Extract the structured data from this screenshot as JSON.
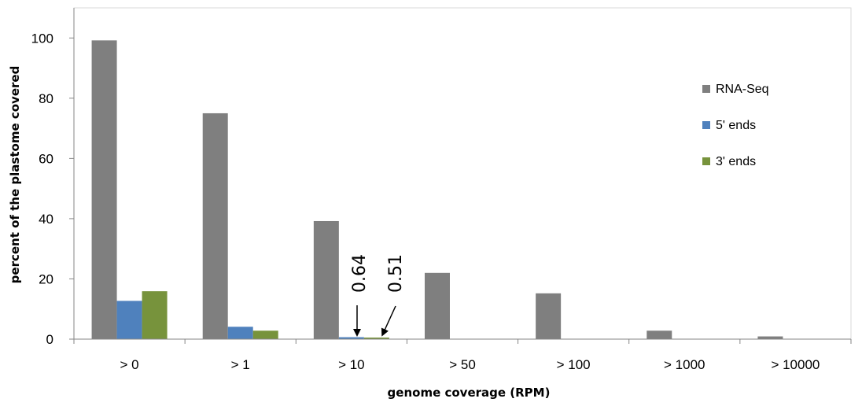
{
  "chart_data": {
    "type": "bar",
    "xlabel": "genome coverage (RPM)",
    "ylabel": "percent of the plastome covered",
    "ylim": [
      0,
      110
    ],
    "yticks": [
      0,
      20,
      40,
      60,
      80,
      100
    ],
    "grid": false,
    "legend_position": "right",
    "categories": [
      "> 0",
      "> 1",
      "> 10",
      "> 50",
      "> 100",
      "> 1000",
      "> 10000"
    ],
    "series": [
      {
        "name": "RNA-Seq",
        "color": "#7f7f7f",
        "values": [
          99.2,
          75,
          39.2,
          22,
          15.2,
          2.8,
          0.9
        ]
      },
      {
        "name": "5' ends",
        "color": "#4f81bd",
        "values": [
          12.7,
          4.1,
          0.64,
          0,
          0,
          0,
          0
        ]
      },
      {
        "name": "3' ends",
        "color": "#77933c",
        "values": [
          15.9,
          2.8,
          0.51,
          0,
          0,
          0,
          0
        ]
      }
    ],
    "annotations": [
      {
        "text": "0.64",
        "category": "> 10",
        "series": "5' ends"
      },
      {
        "text": "0.51",
        "category": "> 10",
        "series": "3' ends"
      }
    ]
  }
}
